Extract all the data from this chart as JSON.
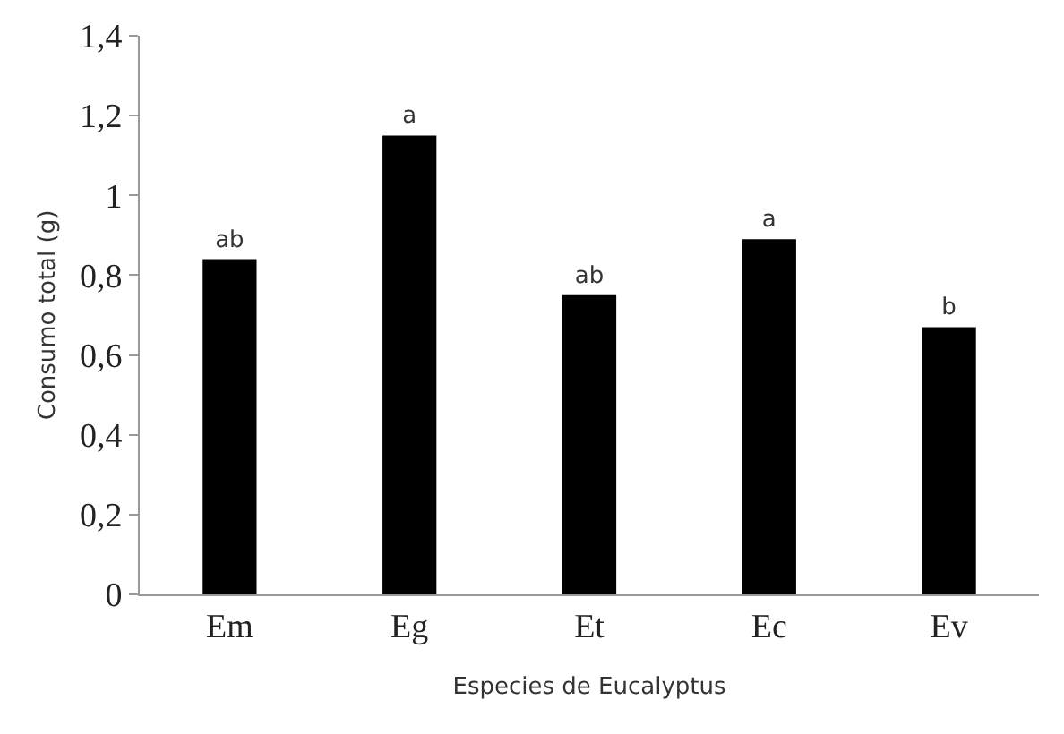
{
  "chart_data": {
    "type": "bar",
    "categories": [
      "Em",
      "Eg",
      "Et",
      "Ec",
      "Ev"
    ],
    "values": [
      0.84,
      1.15,
      0.75,
      0.89,
      0.67
    ],
    "color": "#000000",
    "xlabel": "Especies de Eucalyptus",
    "ylabel": "Consumo total (g)",
    "ylim": [
      0,
      1.4
    ],
    "yticks": [
      {
        "value": 0,
        "label": "0"
      },
      {
        "value": 0.2,
        "label": "0,2"
      },
      {
        "value": 0.4,
        "label": "0,4"
      },
      {
        "value": 0.6,
        "label": "0,6"
      },
      {
        "value": 0.8,
        "label": "0,8"
      },
      {
        "value": 1,
        "label": "1"
      },
      {
        "value": 1.2,
        "label": "1,2"
      },
      {
        "value": 1.4,
        "label": "1,4"
      }
    ],
    "value_labels": [
      "ab",
      "a",
      "ab",
      "a",
      "b"
    ]
  }
}
